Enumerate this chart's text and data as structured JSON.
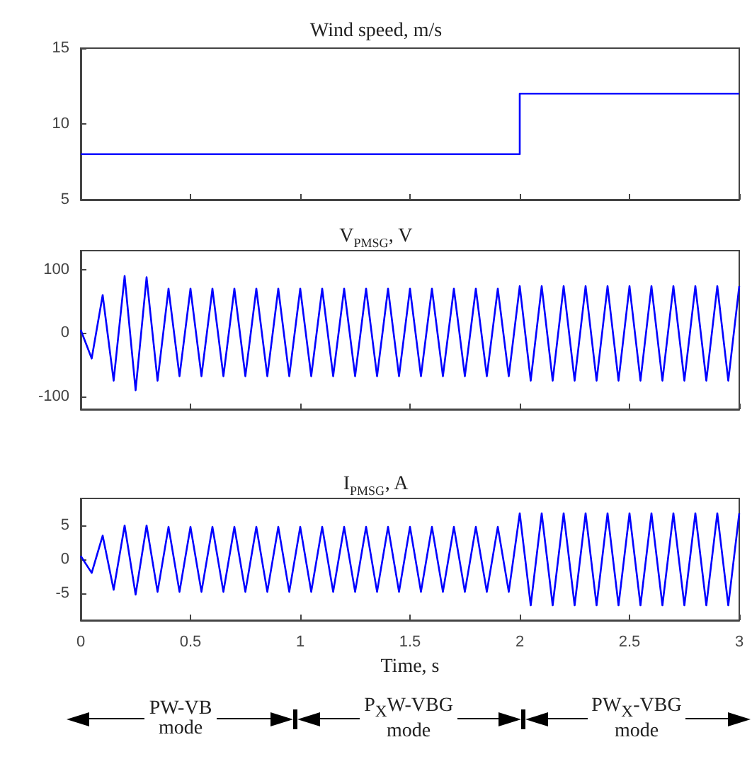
{
  "chart_data": [
    {
      "type": "step",
      "title": "Wind speed, m/s",
      "x": [
        0,
        2,
        3
      ],
      "values": [
        8,
        12,
        12
      ],
      "color": "#0000ff",
      "xlim": [
        0,
        3
      ],
      "xticks": [
        0,
        0.5,
        1,
        1.5,
        2,
        2.5,
        3
      ],
      "ylim": [
        5,
        15
      ],
      "yticks": [
        5,
        10,
        15
      ],
      "tick_labels": "y"
    },
    {
      "type": "line",
      "title": "V$_{PMSG}$, V",
      "x": [
        0,
        0.05,
        0.1,
        0.15,
        0.2,
        0.25,
        0.3,
        0.35,
        0.4,
        0.45,
        0.5,
        0.55,
        0.6,
        0.65,
        0.7,
        0.75,
        0.8,
        0.85,
        0.9,
        0.95,
        1,
        1.05,
        1.1,
        1.15,
        1.2,
        1.25,
        1.3,
        1.35,
        1.4,
        1.45,
        1.5,
        1.55,
        1.6,
        1.65,
        1.7,
        1.75,
        1.8,
        1.85,
        1.9,
        1.95,
        2,
        2.05,
        2.1,
        2.15,
        2.2,
        2.25,
        2.3,
        2.35,
        2.4,
        2.45,
        2.5,
        2.55,
        2.6,
        2.65,
        2.7,
        2.75,
        2.8,
        2.85,
        2.9,
        2.95,
        3
      ],
      "values": [
        5,
        -40,
        60,
        -75,
        90,
        -90,
        88,
        -75,
        70,
        -68,
        70,
        -68,
        70,
        -68,
        70,
        -68,
        70,
        -68,
        70,
        -68,
        70,
        -68,
        70,
        -68,
        70,
        -68,
        70,
        -68,
        70,
        -68,
        70,
        -68,
        70,
        -68,
        70,
        -68,
        70,
        -68,
        70,
        -68,
        74,
        -75,
        74,
        -75,
        74,
        -75,
        74,
        -75,
        74,
        -75,
        74,
        -75,
        74,
        -75,
        74,
        -75,
        74,
        -75,
        74,
        -75,
        74
      ],
      "color": "#0000ff",
      "xlim": [
        0,
        3
      ],
      "xticks": [
        0,
        0.5,
        1,
        1.5,
        2,
        2.5,
        3
      ],
      "ylim": [
        -120,
        130
      ],
      "yticks": [
        -100,
        0,
        100
      ],
      "tick_labels": "y"
    },
    {
      "type": "line",
      "title": "I$_{PMSG}$, A",
      "xlabel": "Time, s",
      "x": [
        0,
        0.05,
        0.1,
        0.15,
        0.2,
        0.25,
        0.3,
        0.35,
        0.4,
        0.45,
        0.5,
        0.55,
        0.6,
        0.65,
        0.7,
        0.75,
        0.8,
        0.85,
        0.9,
        0.95,
        1,
        1.05,
        1.1,
        1.15,
        1.2,
        1.25,
        1.3,
        1.35,
        1.4,
        1.45,
        1.5,
        1.55,
        1.6,
        1.65,
        1.7,
        1.75,
        1.8,
        1.85,
        1.9,
        1.95,
        2,
        2.05,
        2.1,
        2.15,
        2.2,
        2.25,
        2.3,
        2.35,
        2.4,
        2.45,
        2.5,
        2.55,
        2.6,
        2.65,
        2.7,
        2.75,
        2.8,
        2.85,
        2.9,
        2.95,
        3
      ],
      "values": [
        0.5,
        -2,
        3.5,
        -4.5,
        5,
        -5.2,
        5,
        -4.8,
        4.8,
        -4.8,
        4.8,
        -4.8,
        4.8,
        -4.8,
        4.8,
        -4.8,
        4.8,
        -4.8,
        4.8,
        -4.8,
        4.8,
        -4.8,
        4.8,
        -4.8,
        4.8,
        -4.8,
        4.8,
        -4.8,
        4.8,
        -4.8,
        4.8,
        -4.8,
        4.8,
        -4.8,
        4.8,
        -4.8,
        4.8,
        -4.8,
        4.8,
        -4.8,
        6.8,
        -6.8,
        6.8,
        -6.8,
        6.8,
        -6.8,
        6.8,
        -6.8,
        6.8,
        -6.8,
        6.8,
        -6.8,
        6.8,
        -6.8,
        6.8,
        -6.8,
        6.8,
        -6.8,
        6.8,
        -6.8,
        6.8
      ],
      "color": "#0000ff",
      "xlim": [
        0,
        3
      ],
      "xticks": [
        0,
        0.5,
        1,
        1.5,
        2,
        2.5,
        3
      ],
      "ylim": [
        -9,
        9
      ],
      "yticks": [
        -5,
        0,
        5
      ],
      "annotations": [
        "PW-VB mode",
        "P$_{X}$W-VBG mode",
        "PW$_{X}$-VBG mode"
      ]
    }
  ]
}
